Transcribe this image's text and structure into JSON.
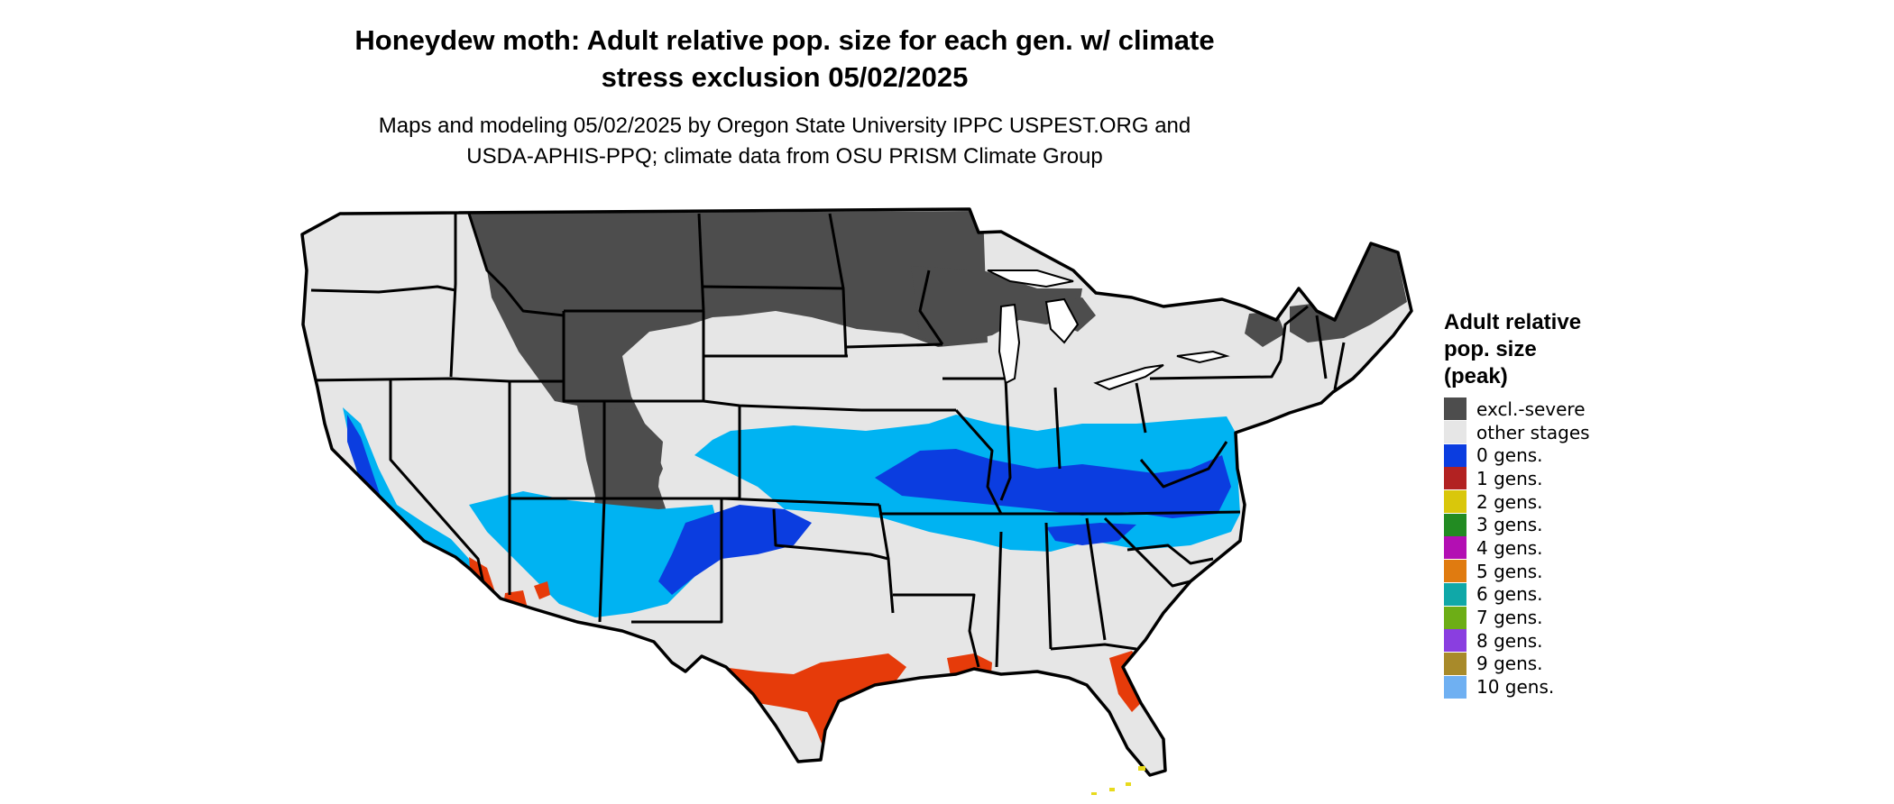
{
  "title_line1": "Honeydew moth: Adult relative pop. size for each gen. w/ climate",
  "title_line2": "stress exclusion 05/02/2025",
  "subtitle_line1": "Maps and modeling 05/02/2025 by Oregon State University IPPC USPEST.ORG and",
  "subtitle_line2": "USDA-APHIS-PPQ; climate data from OSU PRISM Climate Group",
  "legend": {
    "title_lines": [
      "Adult relative",
      "pop. size",
      "(peak)"
    ],
    "items": [
      {
        "label": "excl.-severe",
        "color": "#4d4d4d"
      },
      {
        "label": "other stages",
        "color": "#e6e6e6"
      },
      {
        "label": "0 gens.",
        "color": "#0b3de0"
      },
      {
        "label": "1 gens.",
        "color": "#b22222"
      },
      {
        "label": "2 gens.",
        "color": "#d9c70b"
      },
      {
        "label": "3 gens.",
        "color": "#228b22"
      },
      {
        "label": "4 gens.",
        "color": "#b30fb3"
      },
      {
        "label": "5 gens.",
        "color": "#e07b10"
      },
      {
        "label": "6 gens.",
        "color": "#10a8a8"
      },
      {
        "label": "7 gens.",
        "color": "#6dae16"
      },
      {
        "label": "8 gens.",
        "color": "#8a3ee0"
      },
      {
        "label": "9 gens.",
        "color": "#a88a2a"
      },
      {
        "label": "10 gens.",
        "color": "#6fb0f2"
      }
    ]
  },
  "map_colors": {
    "land": "#e6e6e6",
    "excluded": "#4d4d4d",
    "low_pop": "#00b3f2",
    "high_pop": "#0b3de0",
    "peak_pop": "#e63b0a",
    "border": "#000000"
  }
}
